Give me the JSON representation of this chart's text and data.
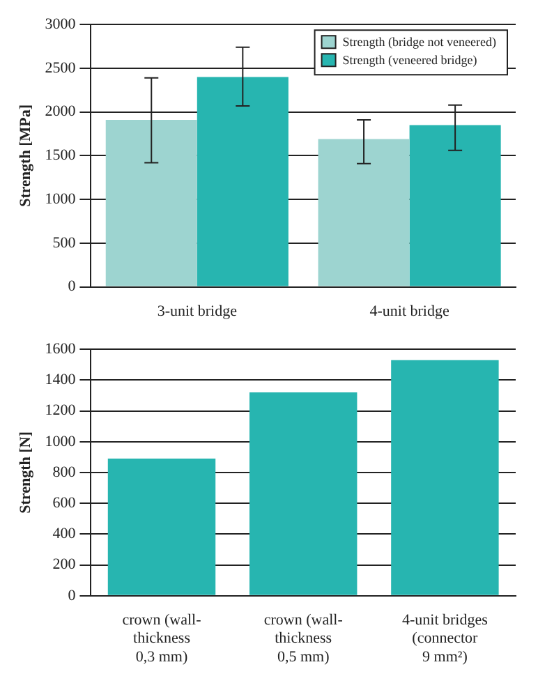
{
  "chart_data": [
    {
      "type": "bar",
      "ylabel": "Strength [MPa]",
      "categories": [
        "3-unit bridge",
        "4-unit bridge"
      ],
      "series": [
        {
          "name": "Strength (bridge not veneered)",
          "color": "#9dd4d0",
          "values": [
            1910,
            1690
          ],
          "errors": [
            [
              1420,
              2390
            ],
            [
              1410,
              1910
            ]
          ]
        },
        {
          "name": "Strength (veneered bridge)",
          "color": "#27b5b0",
          "values": [
            2400,
            1850
          ],
          "errors": [
            [
              2070,
              2740
            ],
            [
              1560,
              2080
            ]
          ]
        }
      ],
      "ylim": [
        0,
        3000
      ],
      "yticks": [
        0,
        500,
        1000,
        1500,
        2000,
        2500,
        3000
      ],
      "grid": "y",
      "legend": "top right"
    },
    {
      "type": "bar",
      "ylabel": "Strength [N]",
      "categories": [
        "crown (wall-\nthickness\n0,3 mm)",
        "crown (wall-\nthickness\n0,5 mm)",
        "4-unit bridges\n(connector\n9 mm²)"
      ],
      "values": [
        890,
        1320,
        1530
      ],
      "color": "#27b5b0",
      "ylim": [
        0,
        1600
      ],
      "yticks": [
        0,
        200,
        400,
        600,
        800,
        1000,
        1200,
        1400,
        1600
      ],
      "grid": "y"
    }
  ]
}
